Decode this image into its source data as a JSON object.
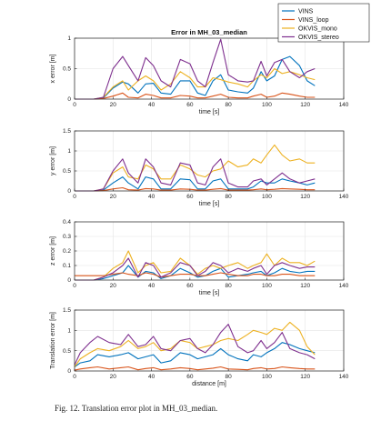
{
  "caption": "Fig. 12.  Translation error plot in MH_03_median.",
  "legend": {
    "entries": [
      {
        "label": "VINS",
        "color": "#0072BD"
      },
      {
        "label": "VINS_loop",
        "color": "#D95319"
      },
      {
        "label": "OKVIS_mono",
        "color": "#EDB120"
      },
      {
        "label": "OKVIS_stereo",
        "color": "#7E2F8E"
      }
    ]
  },
  "chart_data": [
    {
      "type": "line",
      "title": "Error in MH_03_median",
      "xlabel": "time [s]",
      "ylabel": "x error [m]",
      "xlim": [
        0,
        140
      ],
      "ylim": [
        0,
        1
      ],
      "xticks": [
        0,
        20,
        40,
        60,
        80,
        100,
        120,
        140
      ],
      "yticks": [
        0,
        0.5,
        1
      ],
      "grid": true,
      "series": [
        {
          "name": "VINS",
          "x": [
            0,
            10,
            15,
            20,
            25,
            28,
            33,
            37,
            41,
            45,
            50,
            55,
            60,
            64,
            68,
            72,
            76,
            80,
            85,
            90,
            93,
            97,
            100,
            104,
            108,
            112,
            117,
            121,
            125
          ],
          "y": [
            0,
            0,
            0.02,
            0.18,
            0.28,
            0.25,
            0.1,
            0.25,
            0.26,
            0.1,
            0.08,
            0.3,
            0.3,
            0.1,
            0.06,
            0.3,
            0.4,
            0.15,
            0.12,
            0.1,
            0.18,
            0.45,
            0.3,
            0.38,
            0.65,
            0.7,
            0.55,
            0.3,
            0.22
          ]
        },
        {
          "name": "VINS_loop",
          "x": [
            0,
            10,
            15,
            20,
            25,
            28,
            33,
            37,
            41,
            45,
            50,
            55,
            60,
            64,
            68,
            72,
            76,
            80,
            85,
            90,
            93,
            97,
            100,
            104,
            108,
            112,
            117,
            121,
            125
          ],
          "y": [
            0,
            0,
            0.01,
            0.05,
            0.1,
            0.03,
            0.02,
            0.08,
            0.06,
            0.02,
            0.02,
            0.06,
            0.05,
            0.02,
            0.02,
            0.05,
            0.08,
            0.03,
            0.02,
            0.02,
            0.05,
            0.08,
            0.03,
            0.05,
            0.1,
            0.08,
            0.05,
            0.03,
            0.03
          ]
        },
        {
          "name": "OKVIS_mono",
          "x": [
            0,
            10,
            15,
            20,
            25,
            28,
            33,
            37,
            41,
            45,
            50,
            55,
            60,
            64,
            68,
            72,
            76,
            80,
            85,
            90,
            93,
            97,
            100,
            104,
            108,
            112,
            117,
            121,
            125
          ],
          "y": [
            0,
            0,
            0.03,
            0.2,
            0.3,
            0.15,
            0.3,
            0.38,
            0.3,
            0.15,
            0.25,
            0.45,
            0.35,
            0.2,
            0.2,
            0.35,
            0.32,
            0.28,
            0.25,
            0.2,
            0.3,
            0.4,
            0.35,
            0.5,
            0.42,
            0.45,
            0.4,
            0.35,
            0.32
          ]
        },
        {
          "name": "OKVIS_stereo",
          "x": [
            0,
            10,
            15,
            20,
            25,
            28,
            33,
            37,
            41,
            45,
            50,
            55,
            60,
            64,
            68,
            72,
            76,
            80,
            85,
            90,
            93,
            97,
            100,
            104,
            108,
            112,
            117,
            121,
            125
          ],
          "y": [
            0,
            0,
            0.03,
            0.5,
            0.7,
            0.55,
            0.3,
            0.68,
            0.55,
            0.3,
            0.2,
            0.65,
            0.58,
            0.3,
            0.2,
            0.6,
            0.98,
            0.4,
            0.3,
            0.28,
            0.3,
            0.62,
            0.38,
            0.6,
            0.65,
            0.45,
            0.35,
            0.45,
            0.5
          ]
        }
      ]
    },
    {
      "type": "line",
      "title": "",
      "xlabel": "time [s]",
      "ylabel": "y error [m]",
      "xlim": [
        0,
        140
      ],
      "ylim": [
        0,
        1.5
      ],
      "xticks": [
        0,
        20,
        40,
        60,
        80,
        100,
        120,
        140
      ],
      "yticks": [
        0,
        0.5,
        1,
        1.5
      ],
      "grid": true,
      "series": [
        {
          "name": "VINS",
          "x": [
            0,
            10,
            15,
            20,
            25,
            28,
            33,
            37,
            41,
            45,
            50,
            55,
            60,
            64,
            68,
            72,
            76,
            80,
            85,
            90,
            93,
            97,
            100,
            104,
            108,
            112,
            117,
            121,
            125
          ],
          "y": [
            0,
            0,
            0.02,
            0.2,
            0.35,
            0.2,
            0.05,
            0.35,
            0.3,
            0.05,
            0.05,
            0.3,
            0.28,
            0.05,
            0.05,
            0.25,
            0.3,
            0.05,
            0.05,
            0.05,
            0.1,
            0.25,
            0.2,
            0.2,
            0.3,
            0.25,
            0.2,
            0.15,
            0.2
          ]
        },
        {
          "name": "VINS_loop",
          "x": [
            0,
            10,
            15,
            20,
            25,
            28,
            33,
            37,
            41,
            45,
            50,
            55,
            60,
            64,
            68,
            72,
            76,
            80,
            85,
            90,
            93,
            97,
            100,
            104,
            108,
            112,
            117,
            121,
            125
          ],
          "y": [
            0,
            0,
            0.01,
            0.05,
            0.08,
            0.03,
            0.02,
            0.06,
            0.05,
            0.02,
            0.02,
            0.05,
            0.04,
            0.02,
            0.02,
            0.04,
            0.06,
            0.02,
            0.02,
            0.02,
            0.03,
            0.05,
            0.03,
            0.04,
            0.06,
            0.05,
            0.04,
            0.03,
            0.03
          ]
        },
        {
          "name": "OKVIS_mono",
          "x": [
            0,
            10,
            15,
            20,
            25,
            28,
            33,
            37,
            41,
            45,
            50,
            55,
            60,
            64,
            68,
            72,
            76,
            80,
            85,
            90,
            93,
            97,
            100,
            104,
            108,
            112,
            117,
            121,
            125
          ],
          "y": [
            0,
            0,
            0.05,
            0.45,
            0.6,
            0.35,
            0.3,
            0.65,
            0.55,
            0.3,
            0.3,
            0.65,
            0.55,
            0.4,
            0.35,
            0.5,
            0.55,
            0.75,
            0.6,
            0.65,
            0.8,
            0.7,
            0.9,
            1.15,
            0.9,
            0.75,
            0.8,
            0.7,
            0.7
          ]
        },
        {
          "name": "OKVIS_stereo",
          "x": [
            0,
            10,
            15,
            20,
            25,
            28,
            33,
            37,
            41,
            45,
            50,
            55,
            60,
            64,
            68,
            72,
            76,
            80,
            85,
            90,
            93,
            97,
            100,
            104,
            108,
            112,
            117,
            121,
            125
          ],
          "y": [
            0,
            0,
            0.05,
            0.5,
            0.8,
            0.45,
            0.2,
            0.8,
            0.6,
            0.2,
            0.15,
            0.7,
            0.65,
            0.2,
            0.15,
            0.6,
            0.8,
            0.2,
            0.1,
            0.1,
            0.25,
            0.3,
            0.15,
            0.3,
            0.45,
            0.3,
            0.2,
            0.25,
            0.3
          ]
        }
      ]
    },
    {
      "type": "line",
      "title": "",
      "xlabel": "time [s]",
      "ylabel": "z error [m]",
      "xlim": [
        0,
        140
      ],
      "ylim": [
        0,
        0.4
      ],
      "xticks": [
        0,
        20,
        40,
        60,
        80,
        100,
        120,
        140
      ],
      "yticks": [
        0,
        0.1,
        0.2,
        0.3,
        0.4
      ],
      "grid": true,
      "series": [
        {
          "name": "VINS",
          "x": [
            0,
            10,
            15,
            20,
            25,
            28,
            33,
            37,
            41,
            45,
            50,
            55,
            60,
            64,
            68,
            72,
            76,
            80,
            85,
            90,
            93,
            97,
            100,
            104,
            108,
            112,
            117,
            121,
            125
          ],
          "y": [
            0,
            0,
            0.01,
            0.03,
            0.05,
            0.1,
            0.02,
            0.06,
            0.05,
            0.01,
            0.03,
            0.08,
            0.05,
            0.02,
            0.03,
            0.06,
            0.08,
            0.02,
            0.03,
            0.04,
            0.05,
            0.06,
            0.03,
            0.05,
            0.08,
            0.06,
            0.05,
            0.06,
            0.06
          ]
        },
        {
          "name": "VINS_loop",
          "x": [
            0,
            10,
            15,
            20,
            25,
            28,
            33,
            37,
            41,
            45,
            50,
            55,
            60,
            64,
            68,
            72,
            76,
            80,
            85,
            90,
            93,
            97,
            100,
            104,
            108,
            112,
            117,
            121,
            125
          ],
          "y": [
            0.03,
            0.03,
            0.03,
            0.04,
            0.05,
            0.04,
            0.03,
            0.05,
            0.04,
            0.02,
            0.03,
            0.04,
            0.04,
            0.03,
            0.03,
            0.04,
            0.05,
            0.04,
            0.03,
            0.03,
            0.04,
            0.04,
            0.03,
            0.03,
            0.04,
            0.04,
            0.03,
            0.03,
            0.03
          ]
        },
        {
          "name": "OKVIS_mono",
          "x": [
            0,
            10,
            15,
            20,
            25,
            28,
            33,
            37,
            41,
            45,
            50,
            55,
            60,
            64,
            68,
            72,
            76,
            80,
            85,
            90,
            93,
            97,
            100,
            104,
            108,
            112,
            117,
            121,
            125
          ],
          "y": [
            0,
            0,
            0.02,
            0.08,
            0.12,
            0.2,
            0.05,
            0.1,
            0.12,
            0.05,
            0.06,
            0.15,
            0.1,
            0.04,
            0.08,
            0.1,
            0.08,
            0.1,
            0.12,
            0.08,
            0.1,
            0.12,
            0.18,
            0.1,
            0.15,
            0.12,
            0.12,
            0.1,
            0.13
          ]
        },
        {
          "name": "OKVIS_stereo",
          "x": [
            0,
            10,
            15,
            20,
            25,
            28,
            33,
            37,
            41,
            45,
            50,
            55,
            60,
            64,
            68,
            72,
            76,
            80,
            85,
            90,
            93,
            97,
            100,
            104,
            108,
            112,
            117,
            121,
            125
          ],
          "y": [
            0,
            0,
            0.02,
            0.05,
            0.1,
            0.15,
            0.02,
            0.12,
            0.1,
            0.02,
            0.05,
            0.12,
            0.1,
            0.03,
            0.06,
            0.12,
            0.1,
            0.05,
            0.08,
            0.06,
            0.08,
            0.1,
            0.04,
            0.1,
            0.12,
            0.1,
            0.08,
            0.09,
            0.09
          ]
        }
      ]
    },
    {
      "type": "line",
      "title": "",
      "xlabel": "distance [m]",
      "ylabel": "Translation error [m]",
      "xlim": [
        0,
        140
      ],
      "ylim": [
        0,
        1.5
      ],
      "xticks": [
        0,
        20,
        40,
        60,
        80,
        100,
        120,
        140
      ],
      "yticks": [
        0,
        0.5,
        1,
        1.5
      ],
      "grid": true,
      "series": [
        {
          "name": "VINS",
          "x": [
            0,
            3,
            8,
            12,
            18,
            24,
            28,
            33,
            37,
            41,
            45,
            50,
            55,
            60,
            64,
            68,
            72,
            76,
            80,
            85,
            90,
            93,
            97,
            100,
            104,
            108,
            112,
            117,
            121,
            125
          ],
          "y": [
            0.1,
            0.2,
            0.25,
            0.4,
            0.35,
            0.4,
            0.45,
            0.3,
            0.35,
            0.4,
            0.2,
            0.25,
            0.45,
            0.4,
            0.3,
            0.35,
            0.4,
            0.55,
            0.4,
            0.3,
            0.25,
            0.4,
            0.35,
            0.45,
            0.55,
            0.7,
            0.65,
            0.55,
            0.5,
            0.45
          ]
        },
        {
          "name": "VINS_loop",
          "x": [
            0,
            3,
            8,
            12,
            18,
            24,
            28,
            33,
            37,
            41,
            45,
            50,
            55,
            60,
            64,
            68,
            72,
            76,
            80,
            85,
            90,
            93,
            97,
            100,
            104,
            108,
            112,
            117,
            121,
            125
          ],
          "y": [
            0.02,
            0.05,
            0.08,
            0.1,
            0.05,
            0.08,
            0.1,
            0.03,
            0.06,
            0.08,
            0.03,
            0.05,
            0.08,
            0.06,
            0.03,
            0.05,
            0.07,
            0.1,
            0.05,
            0.04,
            0.03,
            0.06,
            0.08,
            0.05,
            0.06,
            0.1,
            0.08,
            0.06,
            0.05,
            0.05
          ]
        },
        {
          "name": "OKVIS_mono",
          "x": [
            0,
            3,
            8,
            12,
            18,
            24,
            28,
            33,
            37,
            41,
            45,
            50,
            55,
            60,
            64,
            68,
            72,
            76,
            80,
            85,
            90,
            93,
            97,
            100,
            104,
            108,
            112,
            117,
            121,
            125
          ],
          "y": [
            0.1,
            0.3,
            0.45,
            0.55,
            0.5,
            0.6,
            0.75,
            0.55,
            0.6,
            0.7,
            0.5,
            0.55,
            0.75,
            0.7,
            0.55,
            0.6,
            0.65,
            0.75,
            0.8,
            0.75,
            0.9,
            1.0,
            0.95,
            0.9,
            1.05,
            1.0,
            1.2,
            1.0,
            0.6,
            0.4
          ]
        },
        {
          "name": "OKVIS_stereo",
          "x": [
            0,
            3,
            8,
            12,
            18,
            24,
            28,
            33,
            37,
            41,
            45,
            50,
            55,
            60,
            64,
            68,
            72,
            76,
            80,
            85,
            90,
            93,
            97,
            100,
            104,
            108,
            112,
            117,
            121,
            125
          ],
          "y": [
            0.15,
            0.45,
            0.7,
            0.85,
            0.7,
            0.65,
            0.9,
            0.6,
            0.65,
            0.85,
            0.55,
            0.5,
            0.75,
            0.8,
            0.55,
            0.45,
            0.65,
            0.95,
            1.15,
            0.6,
            0.45,
            0.5,
            0.75,
            0.55,
            0.7,
            0.95,
            0.55,
            0.45,
            0.4,
            0.3
          ]
        }
      ]
    }
  ]
}
